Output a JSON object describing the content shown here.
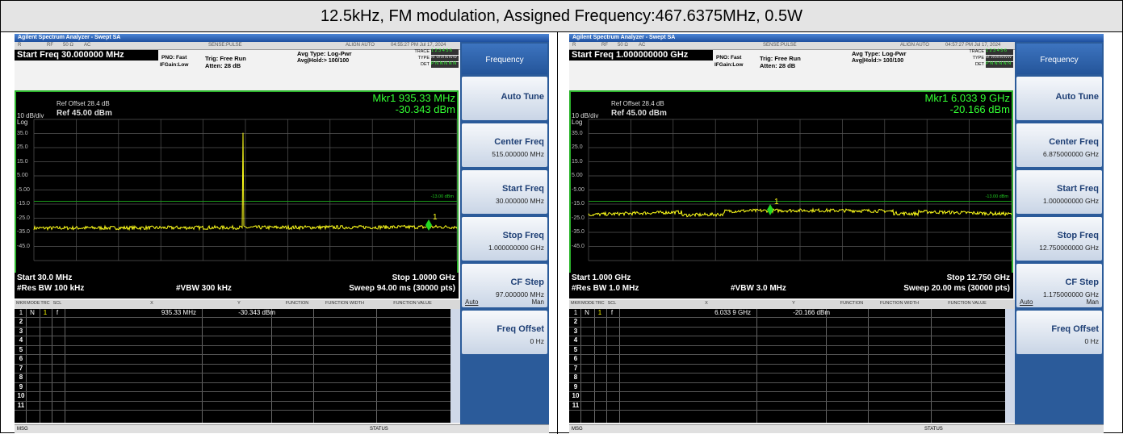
{
  "header": {
    "title": "12.5kHz, FM modulation, Assigned Frequency:467.6375MHz, 0.5W"
  },
  "panels": [
    {
      "app_title": "Agilent Spectrum Analyzer - Swept SA",
      "status_bar": {
        "mode": "R",
        "rf": "RF",
        "impedance": "50 Ω",
        "coupling": "AC",
        "sense": "SENSE:PULSE",
        "align": "ALIGN AUTO",
        "time": "04:55:27 PM Jul 17, 2024"
      },
      "start_freq": "Start Freq 30.000000 MHz",
      "pno": "PNO: Fast",
      "ifgain": "IFGain:Low",
      "trig": "Trig: Free Run",
      "atten": "Atten: 28 dB",
      "avg_type": "Avg Type: Log-Pwr",
      "avg_hold": "Avg|Hold:> 100/100",
      "trace_info": {
        "trace": "TRACE",
        "trace_val": "1 2 3 4 5 6",
        "type": "TYPE",
        "type_val": "M WWWWW",
        "det": "DET",
        "det_val": "P N N N N N"
      },
      "marker_freq": "Mkr1 935.33 MHz",
      "marker_amp": "-30.343 dBm",
      "ref_offset": "Ref Offset 28.4 dB",
      "scale": "10 dB/div",
      "ref_level": "Ref 45.00 dBm",
      "log": "Log",
      "y_labels": [
        "35.0",
        "25.0",
        "15.0",
        "5.00",
        "-5.00",
        "-15.0",
        "-25.0",
        "-35.0",
        "-45.0"
      ],
      "limit_label": "-13.00 dBm",
      "marker_label": "1",
      "start": "Start 30.0 MHz",
      "stop": "Stop 1.0000 GHz",
      "res_bw": "#Res BW 100 kHz",
      "vbw": "#VBW 300 kHz",
      "sweep": "Sweep  94.00 ms (30000 pts)",
      "table": {
        "headers": [
          "MKR",
          "MODE",
          "TRC",
          "SCL",
          "X",
          "Y",
          "FUNCTION",
          "FUNCTION WIDTH",
          "FUNCTION VALUE"
        ],
        "row": [
          "1",
          "N",
          "1",
          "f",
          "935.33 MHz",
          "-30.343 dBm"
        ],
        "row_numbers": [
          "2",
          "3",
          "4",
          "5",
          "6",
          "7",
          "8",
          "9",
          "10",
          "11"
        ]
      },
      "msg": "MSG",
      "status": "STATUS",
      "menu": {
        "title": "Frequency",
        "items": [
          {
            "label": "Auto Tune"
          },
          {
            "label": "Center Freq",
            "value": "515.000000 MHz"
          },
          {
            "label": "Start Freq",
            "value": "30.000000 MHz"
          },
          {
            "label": "Stop Freq",
            "value": "1.000000000 GHz"
          },
          {
            "label": "CF Step",
            "value": "97.000000 MHz",
            "auto": "Auto",
            "man": "Man"
          },
          {
            "label": "Freq Offset",
            "value": "0 Hz"
          }
        ]
      }
    },
    {
      "app_title": "Agilent Spectrum Analyzer - Swept SA",
      "status_bar": {
        "mode": "R",
        "rf": "RF",
        "impedance": "50 Ω",
        "coupling": "AC",
        "sense": "SENSE:PULSE",
        "align": "ALIGN AUTO",
        "time": "04:57:27 PM Jul 17, 2024"
      },
      "start_freq": "Start Freq 1.000000000 GHz",
      "pno": "PNO: Fast",
      "ifgain": "IFGain:Low",
      "trig": "Trig: Free Run",
      "atten": "Atten: 28 dB",
      "avg_type": "Avg Type: Log-Pwr",
      "avg_hold": "Avg|Hold:> 100/100",
      "trace_info": {
        "trace": "TRACE",
        "trace_val": "1 2 3 4 5 6",
        "type": "TYPE",
        "type_val": "M WWWWW",
        "det": "DET",
        "det_val": "P N N N N N"
      },
      "marker_freq": "Mkr1 6.033 9 GHz",
      "marker_amp": "-20.166 dBm",
      "ref_offset": "Ref Offset 28.4 dB",
      "scale": "10 dB/div",
      "ref_level": "Ref 45.00 dBm",
      "log": "Log",
      "y_labels": [
        "35.0",
        "25.0",
        "15.0",
        "5.00",
        "-5.00",
        "-15.0",
        "-25.0",
        "-35.0",
        "-45.0"
      ],
      "limit_label": "-13.00 dBm",
      "marker_label": "1",
      "start": "Start 1.000 GHz",
      "stop": "Stop 12.750 GHz",
      "res_bw": "#Res BW 1.0 MHz",
      "vbw": "#VBW 3.0 MHz",
      "sweep": "Sweep  20.00 ms (30000 pts)",
      "table": {
        "headers": [
          "MKR",
          "MODE",
          "TRC",
          "SCL",
          "X",
          "Y",
          "FUNCTION",
          "FUNCTION WIDTH",
          "FUNCTION VALUE"
        ],
        "row": [
          "1",
          "N",
          "1",
          "f",
          "6.033 9 GHz",
          "-20.166 dBm"
        ],
        "row_numbers": [
          "2",
          "3",
          "4",
          "5",
          "6",
          "7",
          "8",
          "9",
          "10",
          "11"
        ]
      },
      "msg": "MSG",
      "status": "STATUS",
      "menu": {
        "title": "Frequency",
        "items": [
          {
            "label": "Auto Tune"
          },
          {
            "label": "Center Freq",
            "value": "6.875000000 GHz"
          },
          {
            "label": "Start Freq",
            "value": "1.000000000 GHz"
          },
          {
            "label": "Stop Freq",
            "value": "12.750000000 GHz"
          },
          {
            "label": "CF Step",
            "value": "1.175000000 GHz",
            "auto": "Auto",
            "man": "Man"
          },
          {
            "label": "Freq Offset",
            "value": "0 Hz"
          }
        ]
      }
    }
  ]
}
